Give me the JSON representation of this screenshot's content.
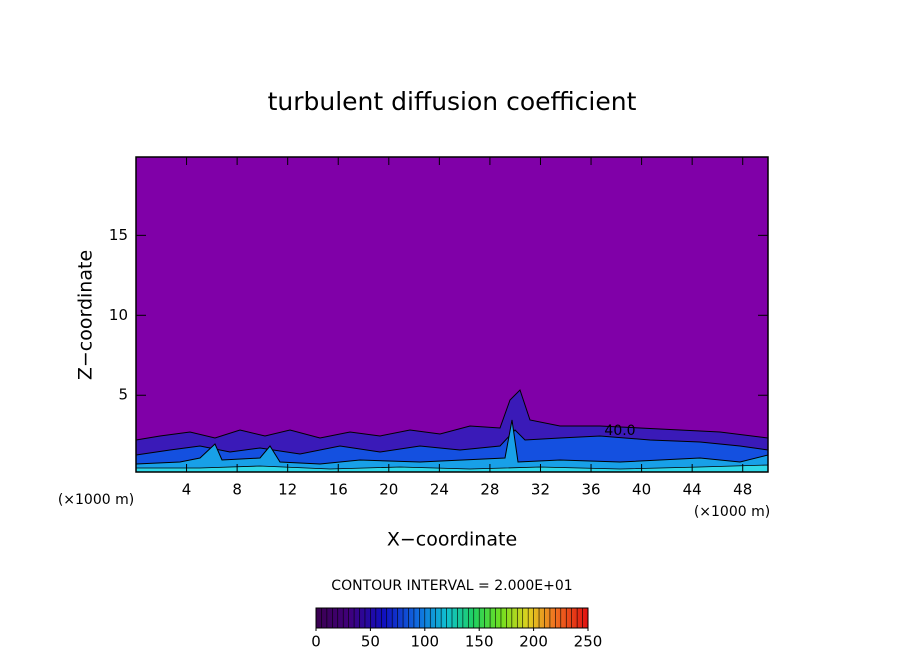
{
  "chart_data": {
    "type": "contour",
    "title": "turbulent diffusion coefficient",
    "x_label": "X−coordinate",
    "y_label": "Z−coordinate",
    "x_unit": "(×1000 m)",
    "xlim": [
      0,
      50
    ],
    "xticks": [
      4,
      8,
      12,
      16,
      20,
      24,
      28,
      32,
      36,
      40,
      44,
      48
    ],
    "ylim": [
      0.2,
      19.9
    ],
    "yticks": [
      5,
      10,
      15
    ],
    "contour_interval_text": "CONTOUR INTERVAL = 2.000E+01",
    "contour_labels": [
      "40.0"
    ],
    "clim": [
      0,
      250
    ],
    "cticks": [
      0,
      50,
      100,
      150,
      200,
      250
    ],
    "background_color": "#8000a8"
  }
}
